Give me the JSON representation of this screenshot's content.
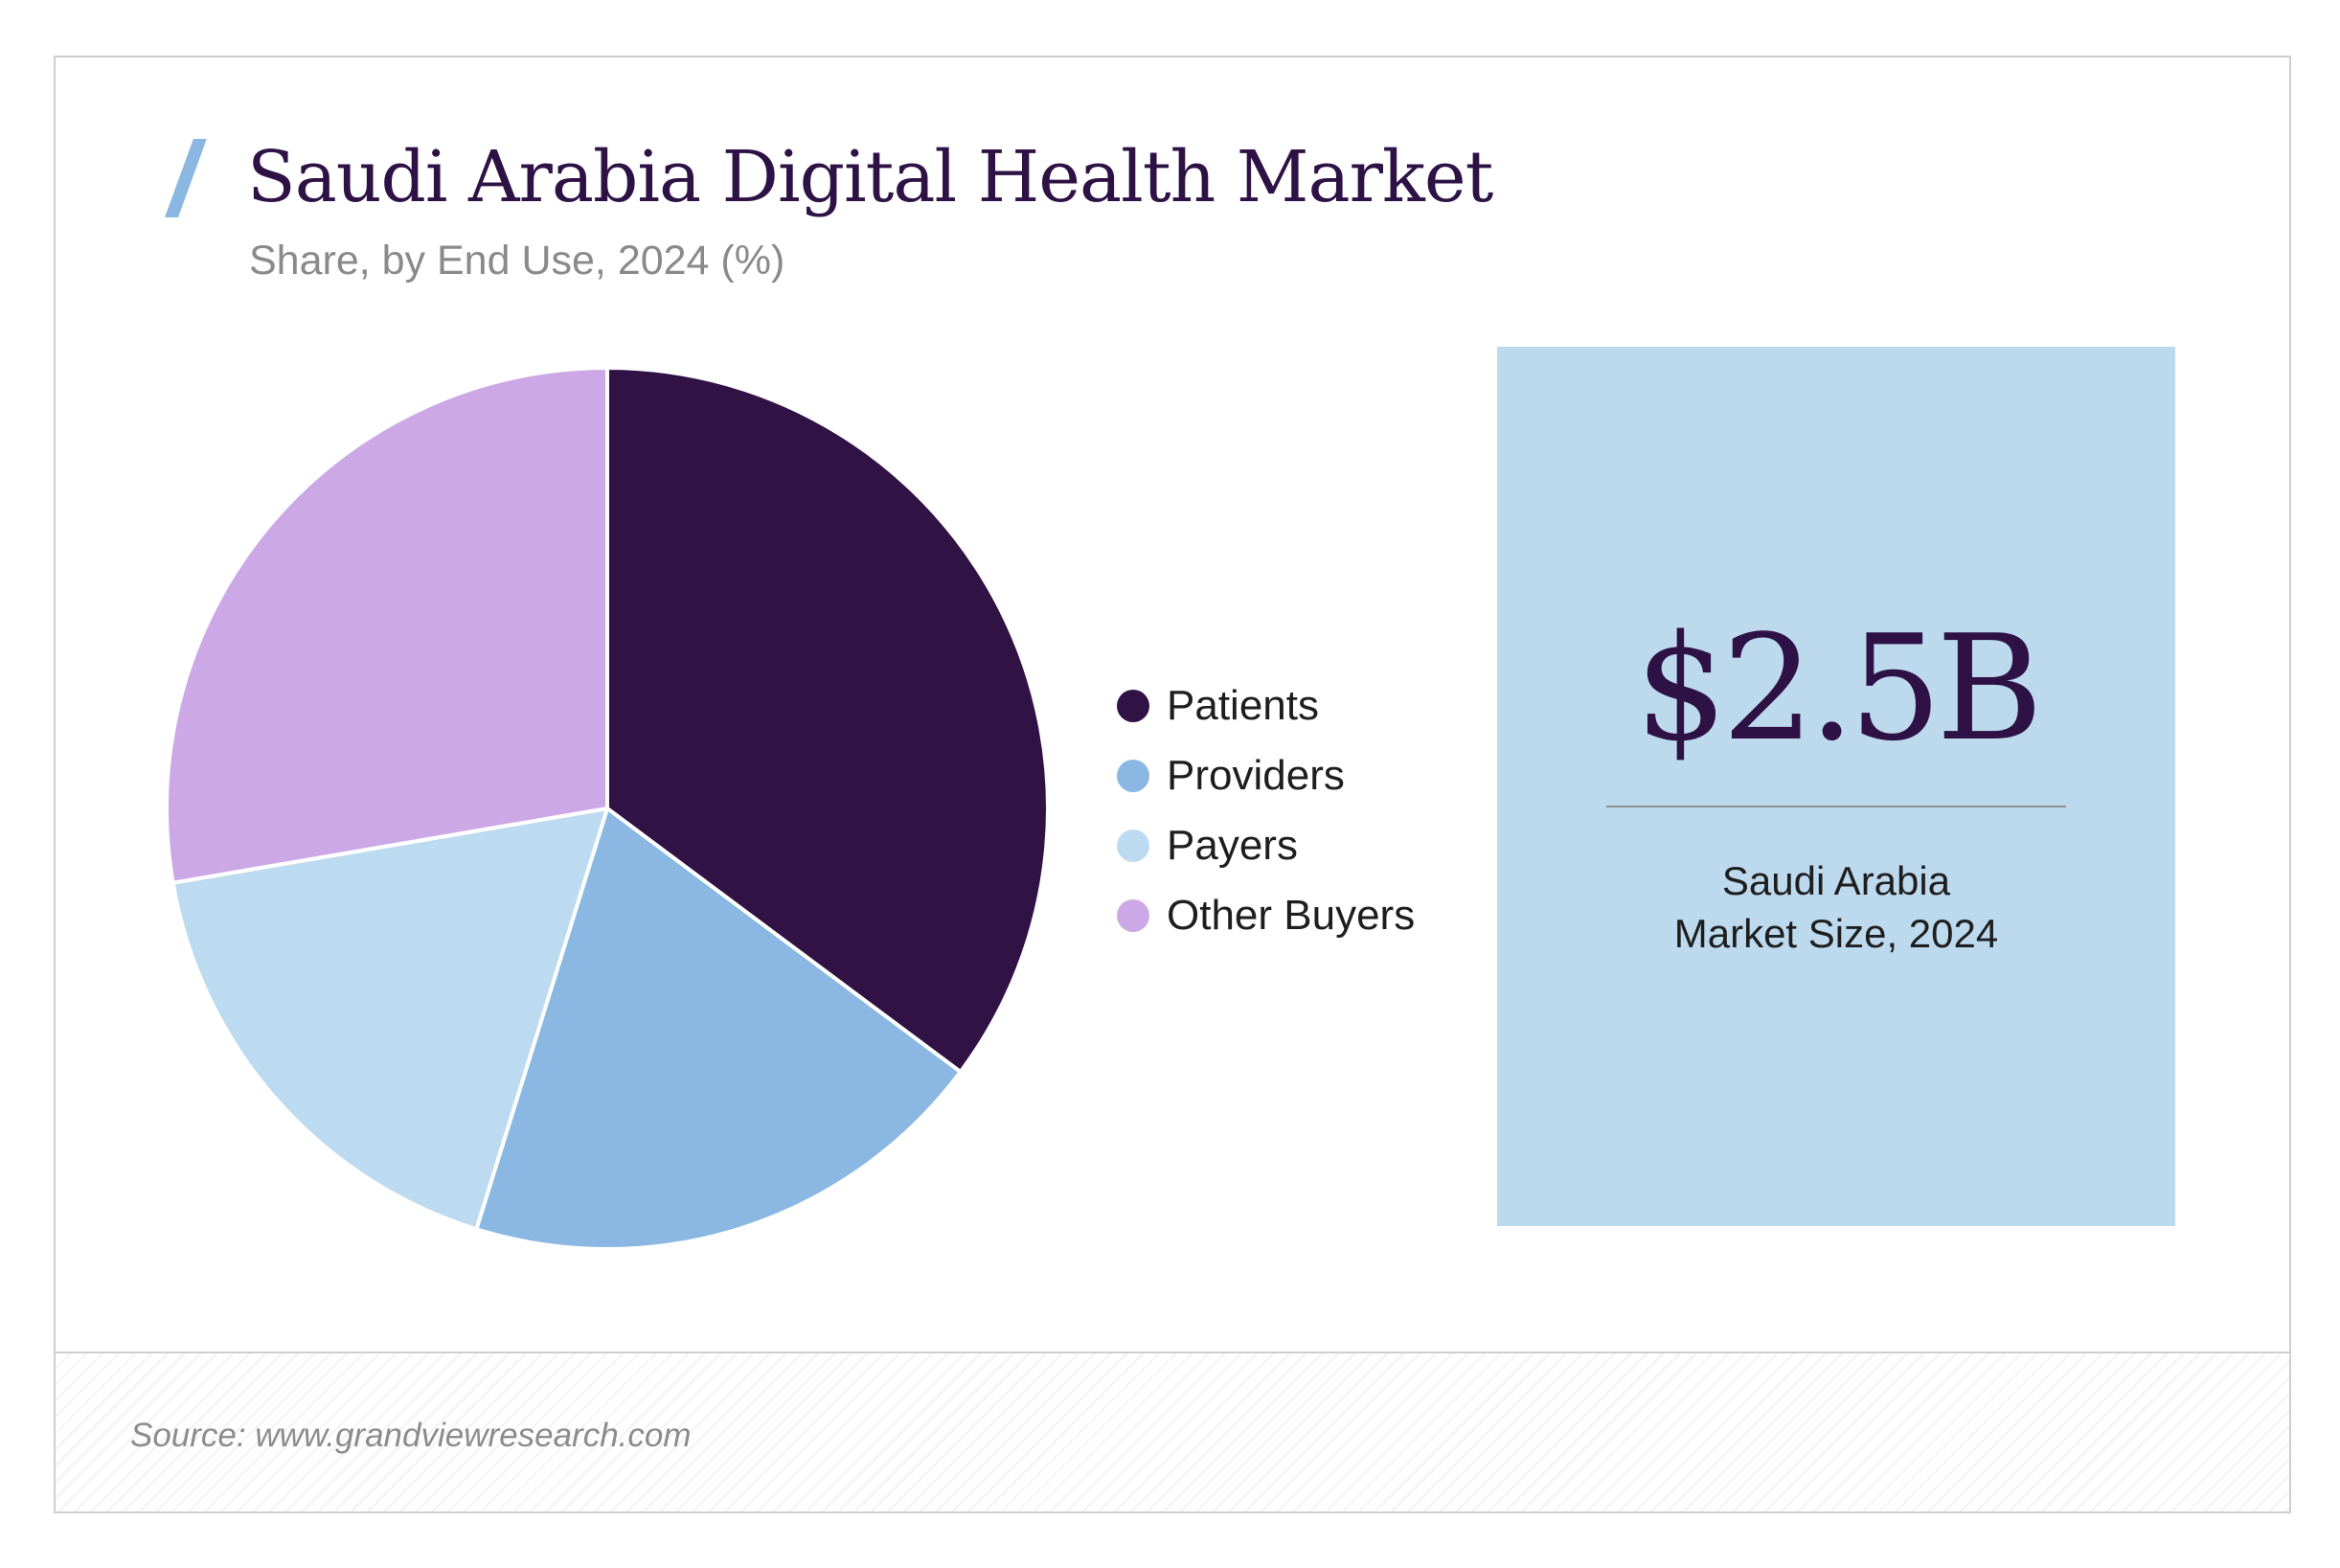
{
  "title": "Saudi Arabia Digital Health Market",
  "subtitle": "Share, by End Use, 2024 (%)",
  "chart_data": {
    "type": "pie",
    "title": "Saudi Arabia Digital Health Market",
    "subtitle": "Share, by End Use, 2024 (%)",
    "categories": [
      "Patients",
      "Providers",
      "Payers",
      "Other Buyers"
    ],
    "values": [
      35.2,
      19.6,
      17.5,
      27.7
    ],
    "colors": [
      "#301245",
      "#8ab8e2",
      "#bddbf0",
      "#cda8e6"
    ],
    "legend_position": "right"
  },
  "stat": {
    "value": "$2.5B",
    "label_line1": "Saudi Arabia",
    "label_line2": "Market Size, 2024"
  },
  "footer": {
    "source": "Source: www.grandviewresearch.com"
  }
}
